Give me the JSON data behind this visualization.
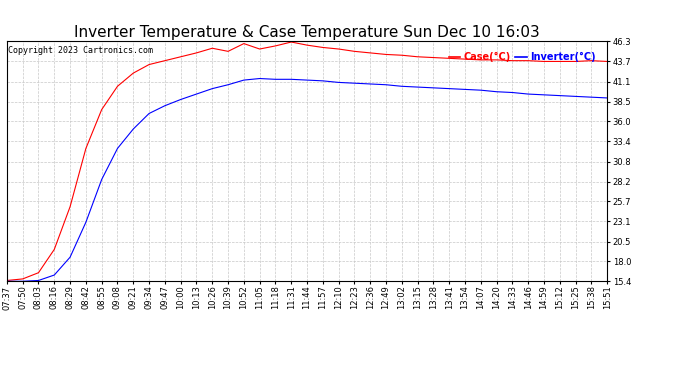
{
  "title": "Inverter Temperature & Case Temperature Sun Dec 10 16:03",
  "copyright": "Copyright 2023 Cartronics.com",
  "legend_case": "Case(°C)",
  "legend_inverter": "Inverter(°C)",
  "case_color": "red",
  "inverter_color": "blue",
  "ymin": 15.4,
  "ymax": 46.3,
  "yticks": [
    15.4,
    18.0,
    20.5,
    23.1,
    25.7,
    28.2,
    30.8,
    33.4,
    36.0,
    38.5,
    41.1,
    43.7,
    46.3
  ],
  "x_labels": [
    "07:37",
    "07:50",
    "08:03",
    "08:16",
    "08:29",
    "08:42",
    "08:55",
    "09:08",
    "09:21",
    "09:34",
    "09:47",
    "10:00",
    "10:13",
    "10:26",
    "10:39",
    "10:52",
    "11:05",
    "11:18",
    "11:31",
    "11:44",
    "11:57",
    "12:10",
    "12:23",
    "12:36",
    "12:49",
    "13:02",
    "13:15",
    "13:28",
    "13:41",
    "13:54",
    "14:07",
    "14:20",
    "14:33",
    "14:46",
    "14:59",
    "15:12",
    "15:25",
    "15:38",
    "15:51"
  ],
  "case_data": [
    15.5,
    15.7,
    16.5,
    19.5,
    25.0,
    32.5,
    37.5,
    40.5,
    42.2,
    43.3,
    43.8,
    44.3,
    44.8,
    45.4,
    45.0,
    46.0,
    45.3,
    45.7,
    46.2,
    45.8,
    45.5,
    45.3,
    45.0,
    44.8,
    44.6,
    44.5,
    44.3,
    44.2,
    44.1,
    44.0,
    43.9,
    43.9,
    43.8,
    43.8,
    43.7,
    43.7,
    43.7,
    43.8,
    43.7
  ],
  "inverter_data": [
    15.4,
    15.4,
    15.5,
    16.2,
    18.5,
    23.0,
    28.5,
    32.5,
    35.0,
    37.0,
    38.0,
    38.8,
    39.5,
    40.2,
    40.7,
    41.3,
    41.5,
    41.4,
    41.4,
    41.3,
    41.2,
    41.0,
    40.9,
    40.8,
    40.7,
    40.5,
    40.4,
    40.3,
    40.2,
    40.1,
    40.0,
    39.8,
    39.7,
    39.5,
    39.4,
    39.3,
    39.2,
    39.1,
    39.0
  ],
  "background_color": "#ffffff",
  "grid_color": "#c8c8c8",
  "title_fontsize": 11,
  "tick_fontsize": 6,
  "copyright_fontsize": 6
}
